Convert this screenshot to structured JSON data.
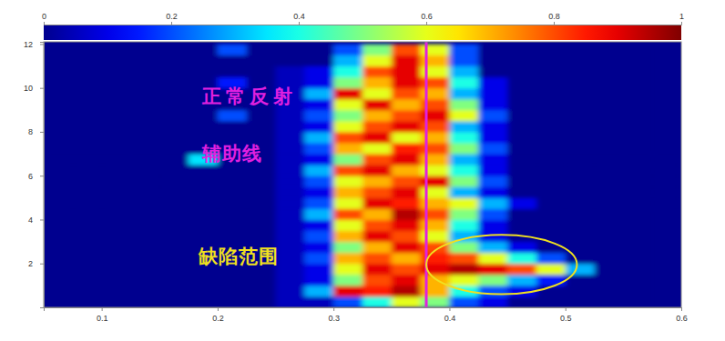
{
  "chart_data": {
    "type": "heatmap",
    "xlim": [
      0.05,
      0.6
    ],
    "xticks": [
      0.1,
      0.2,
      0.3,
      0.4,
      0.5,
      0.6
    ],
    "ylim": [
      0,
      12.1
    ],
    "yticks": [
      2,
      4,
      6,
      8,
      10,
      12
    ],
    "x_bins": [
      0.05,
      0.075,
      0.1,
      0.125,
      0.15,
      0.175,
      0.2,
      0.225,
      0.25,
      0.275,
      0.3,
      0.325,
      0.35,
      0.375,
      0.4,
      0.425,
      0.45,
      0.475,
      0.5,
      0.525,
      0.55,
      0.575,
      0.6
    ],
    "y_bins": [
      0,
      0.5,
      1,
      1.5,
      2,
      2.5,
      3,
      3.5,
      4,
      4.5,
      5,
      5.5,
      6,
      6.5,
      7,
      7.5,
      8,
      8.5,
      9,
      9.5,
      10,
      10.5,
      11,
      11.5,
      12
    ],
    "values": [
      [
        0,
        0,
        0,
        0,
        0,
        0,
        0,
        0,
        0.05,
        0.05,
        0.2,
        0.4,
        0.6,
        0.5,
        0.2,
        0.1,
        0,
        0,
        0,
        0,
        0,
        0
      ],
      [
        0,
        0,
        0,
        0,
        0,
        0,
        0,
        0,
        0.05,
        0.3,
        0.9,
        0.85,
        0.95,
        0.7,
        0.4,
        0.2,
        0.1,
        0,
        0,
        0,
        0,
        0
      ],
      [
        0,
        0,
        0,
        0,
        0,
        0,
        0,
        0,
        0.05,
        0.1,
        0.5,
        0.8,
        0.9,
        0.7,
        0.6,
        0.5,
        0.3,
        0.15,
        0,
        0,
        0,
        0
      ],
      [
        0,
        0,
        0,
        0,
        0,
        0,
        0,
        0,
        0.05,
        0.1,
        0.6,
        0.9,
        0.8,
        0.9,
        0.95,
        0.9,
        0.8,
        0.6,
        0.3,
        0,
        0,
        0
      ],
      [
        0,
        0,
        0,
        0,
        0,
        0,
        0,
        0,
        0.05,
        0.2,
        0.7,
        0.8,
        0.7,
        0.85,
        0.8,
        0.6,
        0.4,
        0.2,
        0,
        0,
        0,
        0
      ],
      [
        0,
        0,
        0,
        0,
        0,
        0,
        0,
        0,
        0.05,
        0.1,
        0.5,
        0.7,
        0.9,
        0.8,
        0.5,
        0.3,
        0.1,
        0,
        0,
        0,
        0,
        0
      ],
      [
        0,
        0,
        0,
        0,
        0,
        0,
        0,
        0,
        0.05,
        0.2,
        0.7,
        0.9,
        0.8,
        0.6,
        0.3,
        0.1,
        0,
        0,
        0,
        0,
        0,
        0
      ],
      [
        0,
        0,
        0,
        0,
        0,
        0,
        0,
        0,
        0.05,
        0.1,
        0.6,
        0.8,
        0.9,
        0.7,
        0.4,
        0.1,
        0,
        0,
        0,
        0,
        0,
        0
      ],
      [
        0,
        0,
        0,
        0,
        0,
        0,
        0,
        0,
        0.05,
        0.3,
        0.8,
        0.7,
        0.95,
        0.8,
        0.5,
        0.2,
        0,
        0,
        0,
        0,
        0,
        0
      ],
      [
        0,
        0,
        0,
        0,
        0,
        0,
        0,
        0,
        0.05,
        0.2,
        0.6,
        0.9,
        0.85,
        0.7,
        0.6,
        0.3,
        0.1,
        0,
        0,
        0,
        0,
        0
      ],
      [
        0,
        0,
        0,
        0,
        0,
        0,
        0,
        0,
        0.05,
        0.1,
        0.7,
        0.8,
        0.9,
        0.6,
        0.3,
        0.1,
        0,
        0,
        0,
        0,
        0,
        0
      ],
      [
        0,
        0,
        0,
        0,
        0,
        0,
        0,
        0,
        0.05,
        0.2,
        0.6,
        0.7,
        0.8,
        0.9,
        0.5,
        0.2,
        0,
        0,
        0,
        0,
        0,
        0
      ],
      [
        0,
        0,
        0,
        0,
        0,
        0,
        0,
        0,
        0.05,
        0.3,
        0.8,
        0.9,
        0.7,
        0.6,
        0.4,
        0.1,
        0,
        0,
        0,
        0,
        0,
        0
      ],
      [
        0,
        0,
        0,
        0,
        0,
        0.35,
        0,
        0,
        0.05,
        0.1,
        0.5,
        0.8,
        0.9,
        0.7,
        0.3,
        0.1,
        0,
        0,
        0,
        0,
        0,
        0
      ],
      [
        0,
        0,
        0,
        0,
        0,
        0,
        0,
        0,
        0.05,
        0.2,
        0.7,
        0.6,
        0.85,
        0.8,
        0.5,
        0.2,
        0,
        0,
        0,
        0,
        0,
        0
      ],
      [
        0,
        0,
        0,
        0,
        0,
        0,
        0,
        0,
        0.05,
        0.3,
        0.8,
        0.9,
        0.6,
        0.7,
        0.4,
        0.1,
        0,
        0,
        0,
        0,
        0,
        0
      ],
      [
        0,
        0,
        0,
        0,
        0,
        0,
        0,
        0,
        0.05,
        0.1,
        0.6,
        0.8,
        0.9,
        0.8,
        0.3,
        0.1,
        0,
        0,
        0,
        0,
        0,
        0
      ],
      [
        0,
        0,
        0,
        0,
        0,
        0,
        0.2,
        0,
        0.05,
        0.2,
        0.5,
        0.7,
        0.8,
        0.9,
        0.6,
        0.2,
        0,
        0,
        0,
        0,
        0,
        0
      ],
      [
        0,
        0,
        0,
        0,
        0,
        0,
        0,
        0,
        0.05,
        0.1,
        0.6,
        0.9,
        0.7,
        0.8,
        0.5,
        0.1,
        0,
        0,
        0,
        0,
        0,
        0
      ],
      [
        0,
        0,
        0,
        0,
        0,
        0,
        0,
        0,
        0.05,
        0.3,
        0.9,
        0.6,
        0.8,
        0.7,
        0.3,
        0.1,
        0,
        0,
        0,
        0,
        0,
        0
      ],
      [
        0,
        0,
        0,
        0,
        0,
        0,
        0.15,
        0,
        0.05,
        0.1,
        0.5,
        0.7,
        0.9,
        0.8,
        0.4,
        0.1,
        0,
        0,
        0,
        0,
        0,
        0
      ],
      [
        0,
        0,
        0,
        0,
        0,
        0,
        0,
        0,
        0.05,
        0.1,
        0.4,
        0.8,
        0.9,
        0.6,
        0.3,
        0,
        0,
        0,
        0,
        0,
        0,
        0
      ],
      [
        0,
        0,
        0,
        0,
        0,
        0,
        0,
        0,
        0,
        0,
        0.3,
        0.6,
        0.9,
        0.7,
        0.2,
        0,
        0,
        0,
        0,
        0,
        0,
        0
      ],
      [
        0,
        0,
        0,
        0,
        0,
        0,
        0.2,
        0,
        0,
        0,
        0.2,
        0.5,
        0.8,
        0.6,
        0.2,
        0,
        0,
        0,
        0,
        0,
        0,
        0
      ]
    ],
    "colorbar": {
      "range": [
        0,
        1
      ],
      "ticks": [
        0,
        0.2,
        0.4,
        0.6,
        0.8,
        1
      ]
    },
    "vline": {
      "x": 0.38,
      "color": "#e020e0"
    },
    "ellipse": {
      "cx": 0.445,
      "cy": 1.95,
      "rx": 0.065,
      "ry": 1.35,
      "color": "#f0e020"
    },
    "annotations": [
      {
        "text": "正常反射",
        "color": "#e020e0"
      },
      {
        "text": "辅助线",
        "color": "#e020e0"
      },
      {
        "text": "缺陷范围",
        "color": "#f0e020"
      }
    ]
  }
}
